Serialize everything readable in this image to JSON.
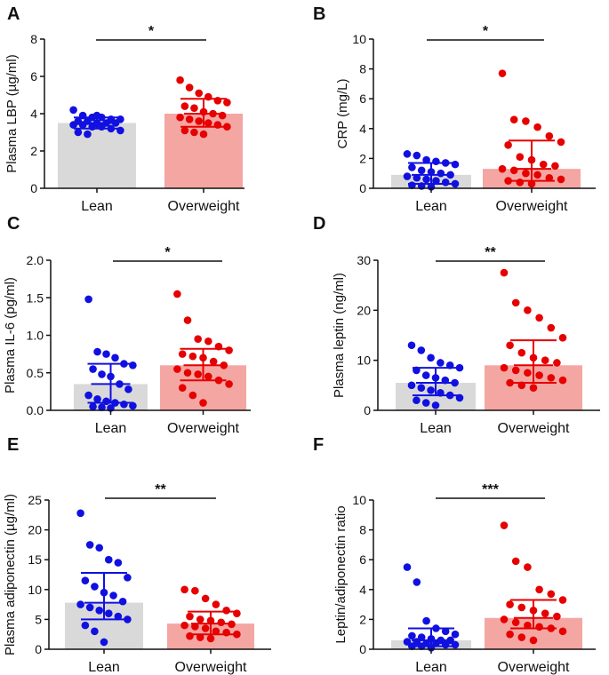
{
  "figure": {
    "colors": {
      "lean_bar": "#d9d9d9",
      "overweight_bar": "#f4a6a3",
      "lean_point": "#1010e0",
      "overweight_point": "#e60000",
      "axis": "#111111"
    }
  },
  "chart_data": [
    {
      "type": "bar",
      "panel": "A",
      "ylabel": "Plasma LBP (µg/ml)",
      "ylim": [
        0,
        8
      ],
      "yticks": [
        0,
        2,
        4,
        6,
        8
      ],
      "ytick_labels": [
        "0",
        "2",
        "4",
        "6",
        "8"
      ],
      "categories": [
        "Lean",
        "Overweight"
      ],
      "means": [
        3.5,
        4.0
      ],
      "error_low": [
        3.2,
        3.3
      ],
      "error_high": [
        3.8,
        4.8
      ],
      "significance": "*",
      "points": [
        [
          4.2,
          3.9,
          3.8,
          3.8,
          3.7,
          3.7,
          3.6,
          3.6,
          3.5,
          3.5,
          3.5,
          3.4,
          3.4,
          3.3,
          3.3,
          3.2,
          3.1,
          3.0,
          2.9,
          3.9
        ],
        [
          5.8,
          5.4,
          5.1,
          4.9,
          4.7,
          4.6,
          4.4,
          4.3,
          4.1,
          4.0,
          3.9,
          3.8,
          3.7,
          3.6,
          3.5,
          3.4,
          3.3,
          3.1,
          3.0,
          2.9
        ]
      ]
    },
    {
      "type": "bar",
      "panel": "B",
      "ylabel": "CRP (mg/L)",
      "ylim": [
        0,
        10
      ],
      "yticks": [
        0,
        2,
        4,
        6,
        8,
        10
      ],
      "ytick_labels": [
        "0",
        "2",
        "4",
        "6",
        "8",
        "10"
      ],
      "categories": [
        "Lean",
        "Overweight"
      ],
      "means": [
        0.9,
        1.3
      ],
      "error_low": [
        0.3,
        0.5
      ],
      "error_high": [
        1.7,
        3.2
      ],
      "significance": "*",
      "points": [
        [
          2.3,
          2.2,
          1.9,
          1.8,
          1.7,
          1.6,
          1.4,
          1.2,
          1.1,
          1.0,
          0.9,
          0.8,
          0.7,
          0.6,
          0.5,
          0.4,
          0.3,
          0.2,
          0.15,
          0.1
        ],
        [
          7.7,
          4.6,
          4.5,
          4.1,
          3.5,
          3.1,
          2.9,
          2.1,
          1.9,
          1.6,
          1.5,
          1.3,
          1.2,
          1.0,
          0.9,
          0.7,
          0.6,
          0.5,
          0.4,
          0.3
        ]
      ]
    },
    {
      "type": "bar",
      "panel": "C",
      "ylabel": "Plasma IL-6 (pg/ml)",
      "ylim": [
        0,
        2.0
      ],
      "yticks": [
        0,
        0.5,
        1.0,
        1.5,
        2.0
      ],
      "ytick_labels": [
        "0.0",
        "0.5",
        "1.0",
        "1.5",
        "2.0"
      ],
      "categories": [
        "Lean",
        "Overweight"
      ],
      "means": [
        0.35,
        0.6
      ],
      "error_low": [
        0.1,
        0.4
      ],
      "error_high": [
        0.62,
        0.82
      ],
      "significance": "*",
      "points": [
        [
          1.48,
          0.78,
          0.75,
          0.7,
          0.62,
          0.6,
          0.55,
          0.48,
          0.45,
          0.35,
          0.28,
          0.2,
          0.15,
          0.12,
          0.1,
          0.08,
          0.06,
          0.05,
          0.04,
          0.03
        ],
        [
          1.55,
          1.2,
          0.95,
          0.92,
          0.85,
          0.8,
          0.75,
          0.72,
          0.7,
          0.65,
          0.6,
          0.55,
          0.5,
          0.48,
          0.45,
          0.4,
          0.35,
          0.3,
          0.2,
          0.1
        ]
      ]
    },
    {
      "type": "bar",
      "panel": "D",
      "ylabel": "Plasma leptin (ng/ml)",
      "ylim": [
        0,
        30
      ],
      "yticks": [
        0,
        10,
        20,
        30
      ],
      "ytick_labels": [
        "0",
        "10",
        "20",
        "30"
      ],
      "categories": [
        "Lean",
        "Overweight"
      ],
      "means": [
        5.5,
        9.0
      ],
      "error_low": [
        3.0,
        5.5
      ],
      "error_high": [
        8.5,
        14.0
      ],
      "significance": "**",
      "points": [
        [
          13.0,
          12.0,
          10.5,
          9.5,
          9.0,
          8.5,
          8.0,
          7.0,
          6.5,
          6.0,
          5.5,
          5.0,
          4.5,
          4.0,
          3.5,
          3.0,
          2.5,
          2.0,
          1.5,
          1.0
        ],
        [
          27.5,
          21.5,
          20.0,
          18.5,
          16.5,
          14.5,
          13.0,
          11.5,
          10.5,
          10.0,
          9.5,
          8.5,
          8.0,
          7.5,
          7.0,
          6.5,
          6.0,
          5.5,
          5.0,
          4.5
        ]
      ]
    },
    {
      "type": "bar",
      "panel": "E",
      "ylabel": "Plasma adiponectin (µg/ml)",
      "ylim": [
        0,
        25
      ],
      "yticks": [
        0,
        5,
        10,
        15,
        20,
        25
      ],
      "ytick_labels": [
        "0",
        "5",
        "10",
        "15",
        "20",
        "25"
      ],
      "categories": [
        "Lean",
        "Overweight"
      ],
      "means": [
        7.8,
        4.3
      ],
      "error_low": [
        5.0,
        2.5
      ],
      "error_high": [
        12.8,
        6.3
      ],
      "significance": "**",
      "points": [
        [
          22.8,
          17.5,
          17.0,
          15.0,
          14.5,
          12.0,
          11.5,
          10.5,
          9.5,
          9.0,
          8.0,
          7.5,
          7.0,
          6.5,
          6.0,
          5.5,
          5.0,
          4.0,
          3.0,
          1.2
        ],
        [
          10.0,
          9.8,
          8.5,
          7.5,
          6.5,
          6.0,
          5.5,
          5.0,
          4.8,
          4.5,
          4.2,
          4.0,
          3.8,
          3.5,
          3.0,
          2.8,
          2.5,
          2.2,
          2.0,
          1.8
        ]
      ]
    },
    {
      "type": "bar",
      "panel": "F",
      "ylabel": "Leptin/adiponectin ratio",
      "ylim": [
        0,
        10
      ],
      "yticks": [
        0,
        2,
        4,
        6,
        8,
        10
      ],
      "ytick_labels": [
        "0",
        "2",
        "4",
        "6",
        "8",
        "10"
      ],
      "categories": [
        "Lean",
        "Overweight"
      ],
      "means": [
        0.6,
        2.1
      ],
      "error_low": [
        0.2,
        1.4
      ],
      "error_high": [
        1.4,
        3.3
      ],
      "significance": "***",
      "points": [
        [
          5.5,
          4.5,
          1.9,
          1.4,
          1.2,
          1.0,
          0.9,
          0.8,
          0.7,
          0.6,
          0.6,
          0.5,
          0.5,
          0.4,
          0.4,
          0.3,
          0.3,
          0.2,
          0.2,
          0.1
        ],
        [
          8.3,
          5.9,
          5.5,
          4.0,
          3.7,
          3.3,
          3.0,
          2.8,
          2.6,
          2.4,
          2.2,
          2.0,
          1.8,
          1.6,
          1.5,
          1.4,
          1.2,
          1.0,
          0.8,
          0.6
        ]
      ]
    }
  ]
}
